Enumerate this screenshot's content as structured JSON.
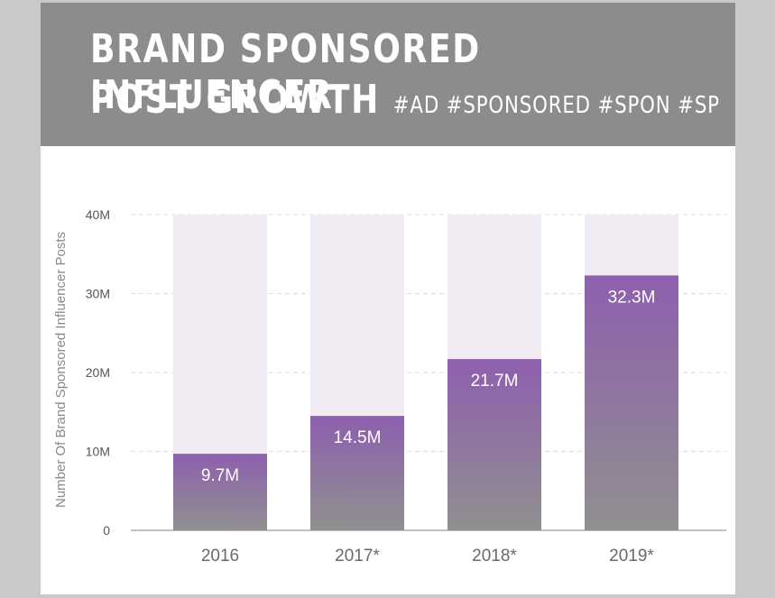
{
  "header": {
    "title_line1": "BRAND SPONSORED INFLUENCER",
    "title_line2": "POST GROWTH",
    "hashtags": "#AD #SPONSORED #SPON #SP"
  },
  "colors": {
    "header_bg": "#8c8c8c",
    "bar_top": "#8e5fae",
    "bar_bottom": "#909090",
    "bar_track": "#f1ecf4"
  },
  "chart_data": {
    "type": "bar",
    "title": "BRAND SPONSORED INFLUENCER POST GROWTH",
    "ylabel": "Number Of Brand Sponsored Influencer Posts",
    "xlabel": "",
    "categories": [
      "2016",
      "2017*",
      "2018*",
      "2019*"
    ],
    "values": [
      9.7,
      14.5,
      21.7,
      32.3
    ],
    "value_labels": [
      "9.7M",
      "14.5M",
      "21.7M",
      "32.3M"
    ],
    "ylim": [
      0,
      40
    ],
    "yticks": [
      0,
      10,
      20,
      30,
      40
    ],
    "ytick_labels": [
      "0",
      "10M",
      "20M",
      "30M",
      "40M"
    ],
    "grid": true,
    "background_track": true
  }
}
